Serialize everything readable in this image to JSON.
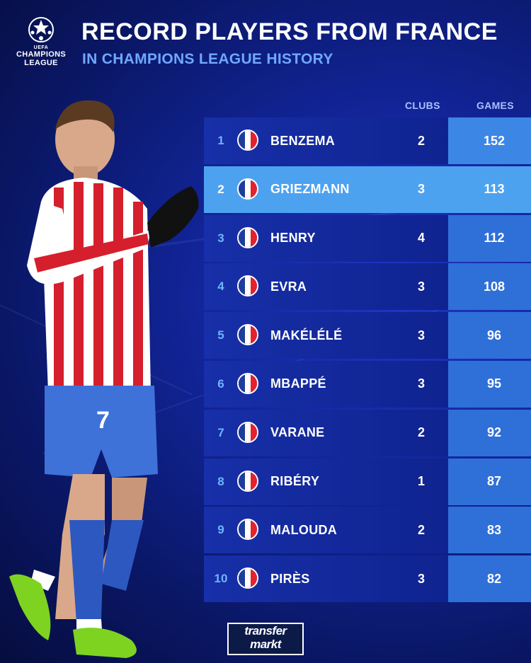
{
  "logo": {
    "org": "UEFA",
    "line1": "CHAMPIONS",
    "line2": "LEAGUE"
  },
  "header": {
    "title": "RECORD PLAYERS FROM FRANCE",
    "subtitle": "IN CHAMPIONS LEAGUE HISTORY"
  },
  "columns": {
    "clubs": "CLUBS",
    "games": "GAMES"
  },
  "rows": [
    {
      "rank": "1",
      "name": "BENZEMA",
      "clubs": "2",
      "games": "152"
    },
    {
      "rank": "2",
      "name": "GRIEZMANN",
      "clubs": "3",
      "games": "113"
    },
    {
      "rank": "3",
      "name": "HENRY",
      "clubs": "4",
      "games": "112"
    },
    {
      "rank": "4",
      "name": "EVRA",
      "clubs": "3",
      "games": "108"
    },
    {
      "rank": "5",
      "name": "MAKÉLÉLÉ",
      "clubs": "3",
      "games": "96"
    },
    {
      "rank": "6",
      "name": "MBAPPÉ",
      "clubs": "3",
      "games": "95"
    },
    {
      "rank": "7",
      "name": "VARANE",
      "clubs": "2",
      "games": "92"
    },
    {
      "rank": "8",
      "name": "RIBÉRY",
      "clubs": "1",
      "games": "87"
    },
    {
      "rank": "9",
      "name": "MALOUDA",
      "clubs": "2",
      "games": "83"
    },
    {
      "rank": "10",
      "name": "PIRÈS",
      "clubs": "3",
      "games": "82"
    }
  ],
  "highlighted_row": "2",
  "flag_colors": {
    "blue": "#1f3c9c",
    "white": "#ffffff",
    "red": "#e3222d"
  },
  "footer": {
    "brand_line1": "transfer",
    "brand_line2": "markt"
  },
  "player_photo": {
    "icon": "player-photo",
    "shirt_number": "7"
  }
}
